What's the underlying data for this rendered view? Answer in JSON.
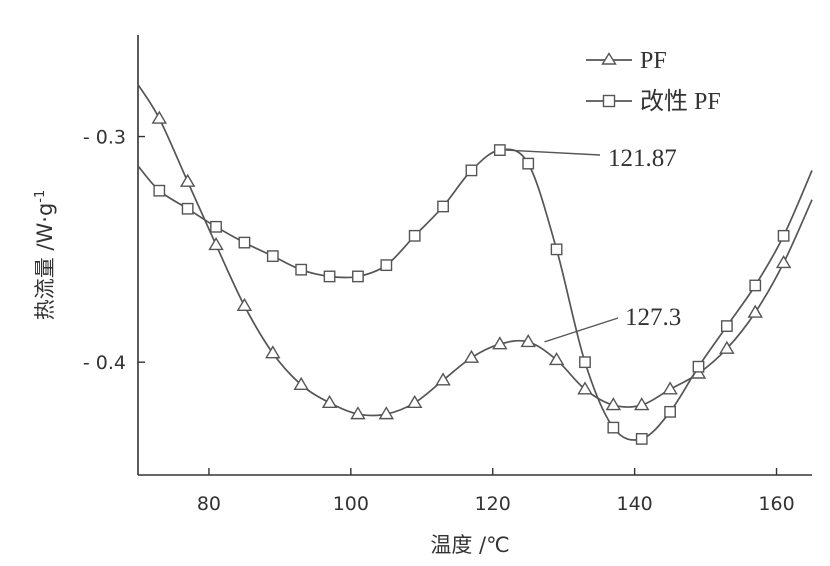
{
  "chart_data": {
    "type": "line",
    "xlabel": "温度 /℃",
    "ylabel": "热流量 /W·g",
    "ylabel_sup": "-1",
    "xlim": [
      70,
      165
    ],
    "ylim": [
      -0.45,
      -0.255
    ],
    "xticks": [
      {
        "value": 80,
        "label": "80"
      },
      {
        "value": 100,
        "label": "100"
      },
      {
        "value": 120,
        "label": "120"
      },
      {
        "value": 140,
        "label": "140"
      },
      {
        "value": 160,
        "label": "160"
      }
    ],
    "yticks": [
      {
        "value": -0.3,
        "label": "- 0.3"
      },
      {
        "value": -0.4,
        "label": "- 0.4"
      }
    ],
    "legend_position": "top-right",
    "series": [
      {
        "name": "PF",
        "marker": "triangle",
        "color": "#555555",
        "points": [
          [
            70,
            -0.277
          ],
          [
            73,
            -0.292
          ],
          [
            77,
            -0.32
          ],
          [
            81,
            -0.348
          ],
          [
            85,
            -0.375
          ],
          [
            89,
            -0.396
          ],
          [
            93,
            -0.41
          ],
          [
            97,
            -0.418
          ],
          [
            101,
            -0.423
          ],
          [
            105,
            -0.423
          ],
          [
            109,
            -0.418
          ],
          [
            113,
            -0.408
          ],
          [
            117,
            -0.398
          ],
          [
            121,
            -0.392
          ],
          [
            125,
            -0.391
          ],
          [
            129,
            -0.399
          ],
          [
            133,
            -0.412
          ],
          [
            137,
            -0.419
          ],
          [
            141,
            -0.419
          ],
          [
            145,
            -0.412
          ],
          [
            149,
            -0.405
          ],
          [
            153,
            -0.394
          ],
          [
            157,
            -0.378
          ],
          [
            161,
            -0.356
          ],
          [
            165,
            -0.328
          ]
        ]
      },
      {
        "name": "改性 PF",
        "marker": "square",
        "color": "#555555",
        "points": [
          [
            70,
            -0.313
          ],
          [
            73,
            -0.324
          ],
          [
            77,
            -0.332
          ],
          [
            81,
            -0.34
          ],
          [
            85,
            -0.347
          ],
          [
            89,
            -0.353
          ],
          [
            93,
            -0.359
          ],
          [
            97,
            -0.362
          ],
          [
            101,
            -0.362
          ],
          [
            105,
            -0.357
          ],
          [
            109,
            -0.344
          ],
          [
            113,
            -0.331
          ],
          [
            117,
            -0.315
          ],
          [
            121,
            -0.306
          ],
          [
            125,
            -0.312
          ],
          [
            129,
            -0.35
          ],
          [
            133,
            -0.4
          ],
          [
            137,
            -0.429
          ],
          [
            141,
            -0.434
          ],
          [
            145,
            -0.422
          ],
          [
            149,
            -0.402
          ],
          [
            153,
            -0.384
          ],
          [
            157,
            -0.366
          ],
          [
            161,
            -0.344
          ],
          [
            165,
            -0.315
          ]
        ]
      }
    ],
    "annotations": [
      {
        "text": "121.87",
        "x": 121.87,
        "y": -0.306
      },
      {
        "text": "127.3",
        "x": 127.3,
        "y": -0.391
      }
    ]
  }
}
